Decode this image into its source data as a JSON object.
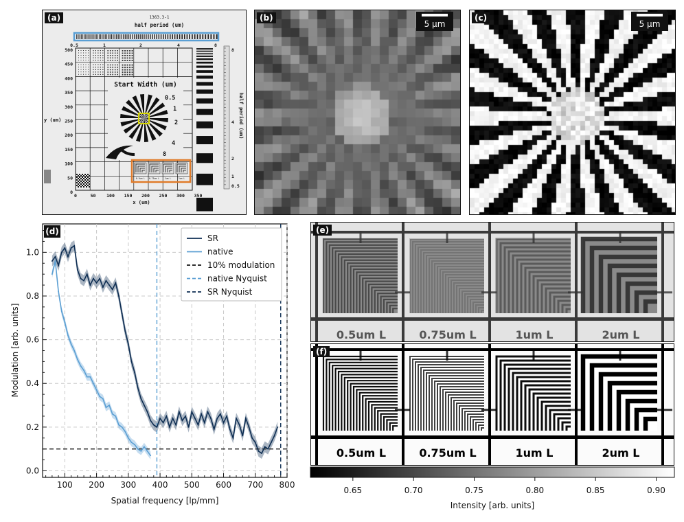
{
  "panels": {
    "a": {
      "label": "(a)",
      "top_title_id": "1363.3-1",
      "top_title": "half period (um)",
      "top_ticks": [
        "0.5",
        "1",
        "2",
        "4",
        "8"
      ],
      "y_label": "y (um)",
      "y_ticks": [
        "500",
        "450",
        "400",
        "350",
        "300",
        "250",
        "200",
        "150",
        "100",
        "50",
        "0"
      ],
      "x_label": "x (um)",
      "x_ticks": [
        "0",
        "50",
        "100",
        "150",
        "200",
        "250",
        "300",
        "350"
      ],
      "center_title": "Start Width (um)",
      "star_labels": [
        "0.5",
        "1",
        "2",
        "4",
        "8"
      ],
      "right_label": "half period (um)",
      "right_ticks": [
        "8",
        "4",
        "2",
        "1",
        "0.5"
      ],
      "small_labels": [
        "0.5um L",
        "0.75um L",
        "1um L",
        "2um L"
      ],
      "highlight_colors": {
        "blue": "#5a9fd4",
        "orange": "#e07b2a",
        "yellow": "#d6d600"
      }
    },
    "b": {
      "label": "(b)",
      "scalebar": "5 µm"
    },
    "c": {
      "label": "(c)",
      "scalebar": "5 µm"
    },
    "e": {
      "label": "(e)",
      "text_labels": [
        "0.5um L",
        "0.75um L",
        "1um L",
        "2um L"
      ]
    },
    "f": {
      "label": "(f)",
      "text_labels": [
        "0.5um L",
        "0.75um L",
        "1um L",
        "2um L"
      ]
    }
  },
  "colorbar": {
    "label": "Intensity [arb. units]",
    "ticks": [
      "0.65",
      "0.70",
      "0.75",
      "0.80",
      "0.85",
      "0.90"
    ],
    "tick_values": [
      0.65,
      0.7,
      0.75,
      0.8,
      0.85,
      0.9
    ],
    "range": [
      0.615,
      0.915
    ]
  },
  "chart_data": {
    "type": "line",
    "panel_label": "(d)",
    "title": "",
    "xlabel": "Spatial frequency [lp/mm]",
    "ylabel": "Modulation [arb. units]",
    "xlim": [
      30,
      800
    ],
    "ylim": [
      -0.03,
      1.13
    ],
    "xticks": [
      100,
      200,
      300,
      400,
      500,
      600,
      700,
      800
    ],
    "yticks": [
      0.0,
      0.2,
      0.4,
      0.6,
      0.8,
      1.0
    ],
    "xtick_labels": [
      "100",
      "200",
      "300",
      "400",
      "500",
      "600",
      "700",
      "800"
    ],
    "ytick_labels": [
      "0.0",
      "0.2",
      "0.4",
      "0.6",
      "0.8",
      "1.0"
    ],
    "grid": true,
    "legend_position": "top-right",
    "series": [
      {
        "name": "SR",
        "color": "#0d2d52",
        "x": [
          60,
          70,
          80,
          90,
          100,
          110,
          120,
          130,
          140,
          150,
          160,
          170,
          180,
          190,
          200,
          210,
          220,
          230,
          240,
          250,
          260,
          270,
          280,
          290,
          300,
          310,
          320,
          330,
          340,
          350,
          360,
          370,
          380,
          390,
          400,
          410,
          420,
          430,
          440,
          450,
          460,
          470,
          480,
          490,
          500,
          510,
          520,
          530,
          540,
          550,
          560,
          570,
          580,
          590,
          600,
          610,
          620,
          630,
          640,
          650,
          660,
          670,
          680,
          690,
          700,
          710,
          720,
          730,
          740,
          750,
          760,
          770
        ],
        "y": [
          0.96,
          0.98,
          0.94,
          1.0,
          1.02,
          0.98,
          1.02,
          1.03,
          0.92,
          0.88,
          0.87,
          0.9,
          0.85,
          0.88,
          0.86,
          0.88,
          0.84,
          0.87,
          0.85,
          0.83,
          0.86,
          0.8,
          0.72,
          0.64,
          0.58,
          0.5,
          0.45,
          0.38,
          0.33,
          0.3,
          0.27,
          0.23,
          0.21,
          0.2,
          0.24,
          0.22,
          0.25,
          0.2,
          0.24,
          0.21,
          0.27,
          0.23,
          0.25,
          0.2,
          0.27,
          0.24,
          0.21,
          0.26,
          0.22,
          0.27,
          0.24,
          0.19,
          0.24,
          0.26,
          0.22,
          0.25,
          0.19,
          0.15,
          0.24,
          0.21,
          0.16,
          0.24,
          0.2,
          0.15,
          0.13,
          0.09,
          0.08,
          0.11,
          0.1,
          0.13,
          0.16,
          0.2
        ],
        "band": 0.025
      },
      {
        "name": "native",
        "color": "#5b9fd3",
        "x": [
          60,
          70,
          80,
          90,
          100,
          110,
          120,
          130,
          140,
          150,
          160,
          170,
          180,
          190,
          200,
          210,
          220,
          230,
          240,
          250,
          260,
          270,
          280,
          290,
          300,
          310,
          320,
          330,
          340,
          350,
          360,
          370
        ],
        "y": [
          0.9,
          0.96,
          0.82,
          0.73,
          0.68,
          0.62,
          0.58,
          0.55,
          0.51,
          0.48,
          0.46,
          0.43,
          0.43,
          0.4,
          0.37,
          0.34,
          0.33,
          0.29,
          0.3,
          0.26,
          0.25,
          0.21,
          0.2,
          0.18,
          0.15,
          0.13,
          0.12,
          0.1,
          0.09,
          0.11,
          0.09,
          0.07
        ],
        "band": 0.018
      }
    ],
    "reference_lines": [
      {
        "name": "10% modulation",
        "orientation": "horizontal",
        "value": 0.1,
        "color": "#111111"
      },
      {
        "name": "native Nyquist",
        "orientation": "vertical",
        "value": 390,
        "color": "#5b9fd3"
      },
      {
        "name": "SR Nyquist",
        "orientation": "vertical",
        "value": 780,
        "color": "#0d2d52"
      }
    ]
  }
}
